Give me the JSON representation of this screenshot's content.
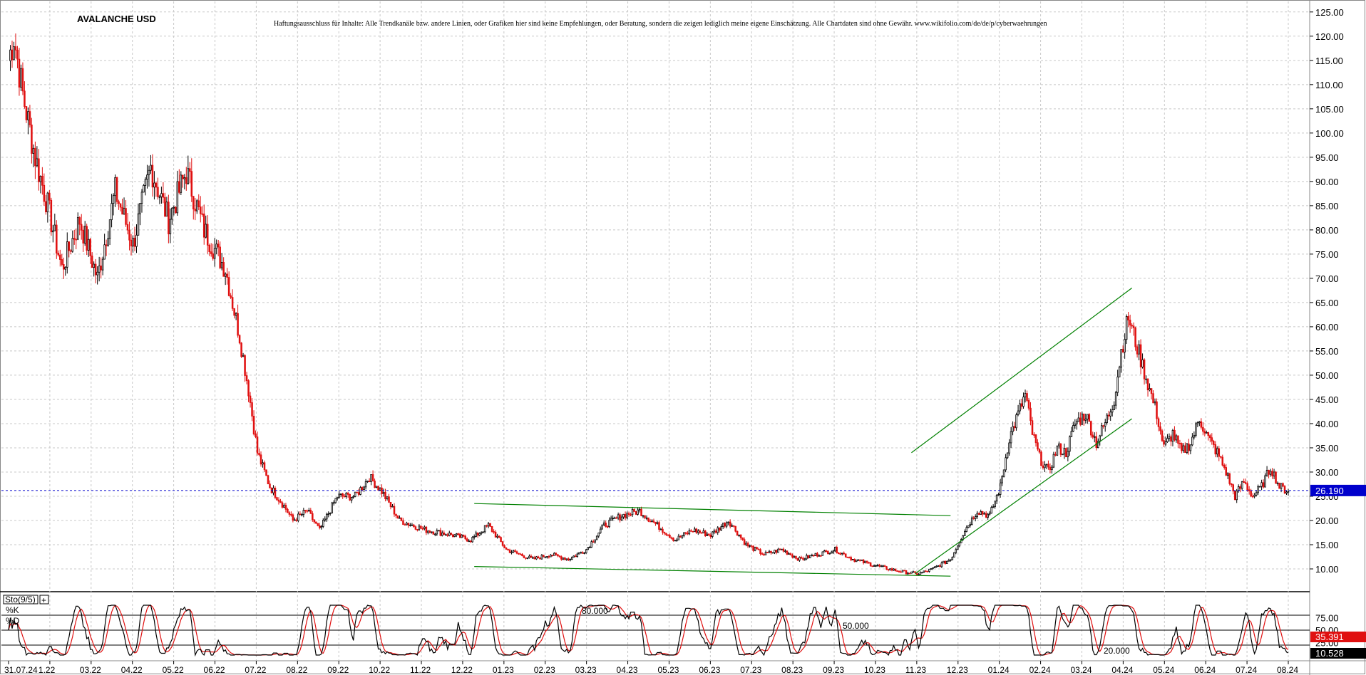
{
  "chart_data": {
    "type": "candlestick",
    "title": "AVALANCHE USD",
    "disclaimer": "Haftungsausschluss für Inhalte: Alle Trendkanäle bzw. andere Linien, oder Grafiken hier sind keine Empfehlungen, oder Beratung, sondern die zeigen lediglich meine eigene Einschätzung. Alle Chartdaten sind ohne Gewähr. www.wikifolio.com/de/de/p/cyberwaehrungen",
    "y_ticks": [
      "125.00",
      "120.00",
      "115.00",
      "110.00",
      "105.00",
      "100.00",
      "95.00",
      "90.00",
      "85.00",
      "80.00",
      "75.00",
      "70.00",
      "65.00",
      "60.00",
      "55.00",
      "50.00",
      "45.00",
      "40.00",
      "35.00",
      "30.00",
      "25.00",
      "20.00",
      "15.00",
      "10.00"
    ],
    "ylim": [
      7.5,
      126
    ],
    "grid": true,
    "x_ticks": [
      "31.07.24",
      "1.22",
      "03.22",
      "04.22",
      "05.22",
      "06.22",
      "07.22",
      "08.22",
      "09.22",
      "10.22",
      "11.22",
      "12.22",
      "01.23",
      "02.23",
      "03.23",
      "04.23",
      "05.23",
      "06.23",
      "07.23",
      "08.23",
      "09.23",
      "10.23",
      "11.23",
      "12.23",
      "01.24",
      "02.24",
      "03.24",
      "04.24",
      "05.24",
      "06.24",
      "07.24",
      "08.24"
    ],
    "current_price": "26.190",
    "colors": {
      "up": "#000000",
      "down": "#e01010",
      "trend": "#008000",
      "current": "#0000cc",
      "stoch_d": "#e01010"
    },
    "price_anchors": [
      [
        0,
        115
      ],
      [
        3,
        120
      ],
      [
        8,
        108
      ],
      [
        15,
        95
      ],
      [
        22,
        85
      ],
      [
        30,
        72
      ],
      [
        40,
        82
      ],
      [
        50,
        70
      ],
      [
        60,
        88
      ],
      [
        70,
        77
      ],
      [
        80,
        93
      ],
      [
        90,
        82
      ],
      [
        100,
        92
      ],
      [
        110,
        80
      ],
      [
        122,
        72
      ],
      [
        130,
        58
      ],
      [
        135,
        47
      ],
      [
        140,
        34
      ],
      [
        147,
        27
      ],
      [
        155,
        23
      ],
      [
        160,
        20
      ],
      [
        168,
        22
      ],
      [
        175,
        18
      ],
      [
        185,
        25
      ],
      [
        195,
        25
      ],
      [
        203,
        29
      ],
      [
        210,
        26
      ],
      [
        220,
        20
      ],
      [
        235,
        18
      ],
      [
        250,
        17
      ],
      [
        260,
        16
      ],
      [
        270,
        19
      ],
      [
        280,
        14
      ],
      [
        295,
        12
      ],
      [
        305,
        13
      ],
      [
        315,
        12
      ],
      [
        325,
        14
      ],
      [
        335,
        19
      ],
      [
        345,
        21
      ],
      [
        355,
        22
      ],
      [
        365,
        19
      ],
      [
        375,
        16
      ],
      [
        385,
        18
      ],
      [
        395,
        17
      ],
      [
        405,
        20
      ],
      [
        415,
        15
      ],
      [
        425,
        13
      ],
      [
        435,
        14
      ],
      [
        445,
        12
      ],
      [
        455,
        13
      ],
      [
        465,
        14
      ],
      [
        475,
        12
      ],
      [
        485,
        11
      ],
      [
        495,
        10
      ],
      [
        505,
        9.3
      ],
      [
        512,
        9
      ],
      [
        520,
        10
      ],
      [
        530,
        12
      ],
      [
        538,
        18
      ],
      [
        545,
        22
      ],
      [
        552,
        21
      ],
      [
        558,
        27
      ],
      [
        563,
        37
      ],
      [
        568,
        42
      ],
      [
        572,
        46
      ],
      [
        576,
        38
      ],
      [
        580,
        33
      ],
      [
        585,
        30
      ],
      [
        590,
        35
      ],
      [
        595,
        34
      ],
      [
        600,
        40
      ],
      [
        606,
        42
      ],
      [
        612,
        36
      ],
      [
        618,
        41
      ],
      [
        622,
        45
      ],
      [
        626,
        55
      ],
      [
        630,
        62
      ],
      [
        634,
        57
      ],
      [
        638,
        52
      ],
      [
        642,
        47
      ],
      [
        646,
        42
      ],
      [
        650,
        35
      ],
      [
        655,
        38
      ],
      [
        660,
        34
      ],
      [
        665,
        36
      ],
      [
        670,
        41
      ],
      [
        675,
        37
      ],
      [
        680,
        34
      ],
      [
        685,
        30
      ],
      [
        690,
        25
      ],
      [
        695,
        28
      ],
      [
        700,
        25
      ],
      [
        705,
        27
      ],
      [
        710,
        31
      ],
      [
        715,
        27
      ],
      [
        720,
        26
      ]
    ],
    "trendlines": [
      {
        "from": [
          262,
          23.5
        ],
        "to": [
          530,
          21
        ]
      },
      {
        "from": [
          262,
          10.5
        ],
        "to": [
          530,
          8.5
        ]
      },
      {
        "from": [
          508,
          34
        ],
        "to": [
          632,
          68
        ]
      },
      {
        "from": [
          510,
          9
        ],
        "to": [
          632,
          41
        ]
      }
    ],
    "stochastic": {
      "label": "Sto(9/5)",
      "k_label": "%K",
      "d_label": "%D",
      "levels": [
        "80.000",
        "50.000",
        "20.000"
      ],
      "y_ticks": [
        "75.00",
        "50.00",
        "25.00"
      ],
      "ylim": [
        0,
        100
      ],
      "k_badge": "35.391",
      "d_badge": "10.528",
      "plus_glyph": "+"
    }
  }
}
